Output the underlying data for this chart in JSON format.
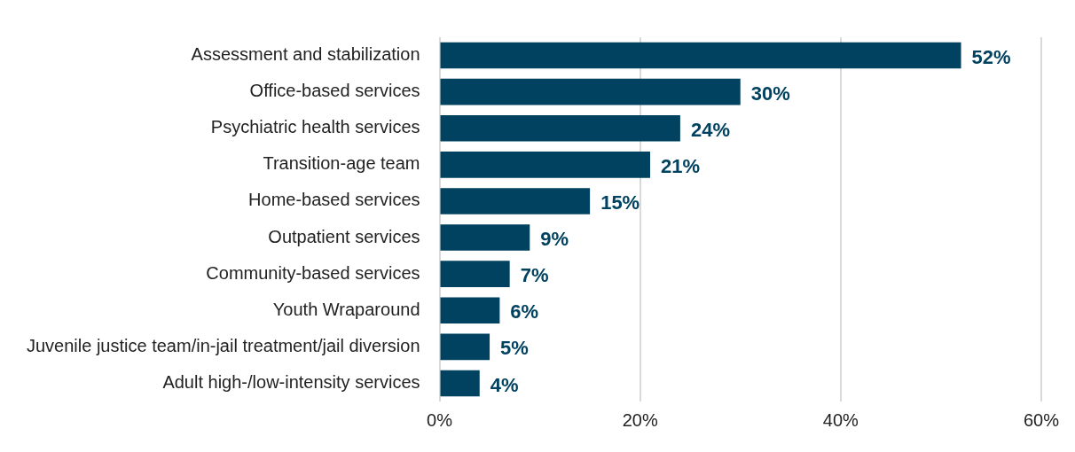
{
  "chart_data": {
    "type": "bar",
    "orientation": "horizontal",
    "categories": [
      "Assessment and stabilization",
      "Office-based services",
      "Psychiatric health services",
      "Transition-age team",
      "Home-based services",
      "Outpatient services",
      "Community-based services",
      "Youth Wraparound",
      "Juvenile justice team/in-jail treatment/jail diversion",
      "Adult high-/low-intensity services"
    ],
    "values": [
      52,
      30,
      24,
      21,
      15,
      9,
      7,
      6,
      5,
      4
    ],
    "color": "#00425f",
    "xlim": [
      0,
      60
    ],
    "xticks": [
      {
        "value": 0,
        "label": "0%"
      },
      {
        "value": 20,
        "label": "20%"
      },
      {
        "value": 40,
        "label": "40%"
      },
      {
        "value": 60,
        "label": "60%"
      }
    ],
    "value_labels": [
      "52%",
      "30%",
      "24%",
      "21%",
      "15%",
      "9%",
      "7%",
      "6%",
      "5%",
      "4%"
    ],
    "grid": "x"
  }
}
